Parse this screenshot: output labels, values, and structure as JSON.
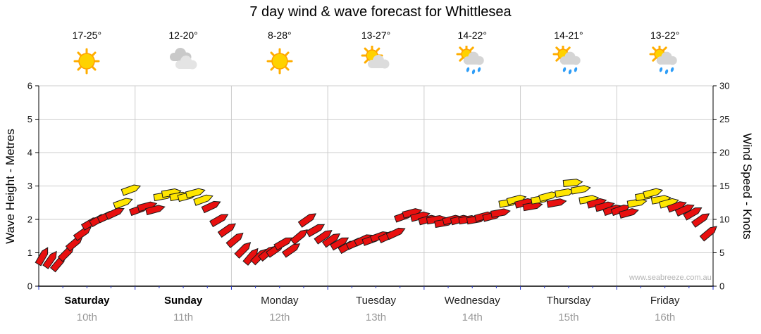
{
  "title": "7 day wind & wave forecast for Whittlesea",
  "watermark": "www.seabreeze.com.au",
  "y_left": {
    "label": "Wave Height - Metres",
    "ticks": [
      0,
      1,
      2,
      3,
      4,
      5,
      6
    ]
  },
  "y_right": {
    "label": "Wind Speed - Knots",
    "ticks": [
      0,
      5,
      10,
      15,
      20,
      25,
      30
    ]
  },
  "days": [
    {
      "name": "Saturday",
      "date": "10th",
      "temp": "17-25°",
      "icon": "sunny",
      "bold": true
    },
    {
      "name": "Sunday",
      "date": "11th",
      "temp": "12-20°",
      "icon": "cloudy",
      "bold": true
    },
    {
      "name": "Monday",
      "date": "12th",
      "temp": "8-28°",
      "icon": "sunny",
      "bold": false
    },
    {
      "name": "Tuesday",
      "date": "13th",
      "temp": "13-27°",
      "icon": "partly-cloudy",
      "bold": false
    },
    {
      "name": "Wednesday",
      "date": "14th",
      "temp": "14-22°",
      "icon": "showers",
      "bold": false
    },
    {
      "name": "Thursday",
      "date": "15th",
      "temp": "14-21°",
      "icon": "showers",
      "bold": false
    },
    {
      "name": "Friday",
      "date": "16th",
      "temp": "13-22°",
      "icon": "showers",
      "bold": false
    }
  ],
  "chart_data": {
    "type": "wind-arrows",
    "x_unit": "12 samples per day (approx. 2-hourly) across 7 days",
    "ylim_wave_m": [
      0,
      6
    ],
    "ylim_wind_knots": [
      0,
      30
    ],
    "grid": true,
    "colors": {
      "red": "#E8100F",
      "yellow": "#FFE600"
    },
    "wind_knots": [
      4.5,
      4,
      3.5,
      5,
      6.5,
      8,
      9.5,
      10,
      10.5,
      11,
      12.5,
      14.5,
      11.5,
      12,
      11.5,
      13.5,
      14,
      13.5,
      13.5,
      14,
      13,
      12,
      10,
      8.5,
      7,
      5.5,
      4.5,
      4.5,
      5,
      5.5,
      6.5,
      5.5,
      7.5,
      10,
      8.5,
      7.5,
      7,
      6.5,
      6,
      6.5,
      7,
      7,
      7.5,
      7.5,
      8,
      10.5,
      11,
      10.5,
      10,
      10,
      9.5,
      10,
      10,
      10,
      10,
      10.5,
      10.5,
      11,
      12.5,
      13,
      12.5,
      12,
      13,
      13.5,
      12.5,
      14,
      15.5,
      14.5,
      13,
      12.5,
      12,
      11.5,
      11.5,
      11,
      12.5,
      13.5,
      14,
      13,
      12.5,
      12,
      11.5,
      11,
      10,
      8
    ],
    "arrow_color": [
      "red",
      "red",
      "red",
      "red",
      "red",
      "red",
      "red",
      "red",
      "red",
      "red",
      "yellow",
      "yellow",
      "red",
      "red",
      "red",
      "yellow",
      "yellow",
      "yellow",
      "yellow",
      "yellow",
      "yellow",
      "red",
      "red",
      "red",
      "red",
      "red",
      "red",
      "red",
      "red",
      "red",
      "red",
      "red",
      "red",
      "red",
      "red",
      "red",
      "red",
      "red",
      "red",
      "red",
      "red",
      "red",
      "red",
      "red",
      "red",
      "red",
      "red",
      "red",
      "red",
      "red",
      "red",
      "red",
      "red",
      "red",
      "red",
      "red",
      "red",
      "red",
      "yellow",
      "yellow",
      "red",
      "red",
      "yellow",
      "yellow",
      "red",
      "yellow",
      "yellow",
      "yellow",
      "yellow",
      "red",
      "red",
      "red",
      "red",
      "red",
      "yellow",
      "yellow",
      "yellow",
      "yellow",
      "yellow",
      "red",
      "red",
      "red",
      "red",
      "red"
    ],
    "arrow_dir_deg": [
      -60,
      -55,
      -50,
      -45,
      -40,
      -35,
      -30,
      -30,
      -25,
      -25,
      -20,
      -20,
      -20,
      -15,
      -15,
      -10,
      -10,
      -10,
      -15,
      -15,
      -20,
      -25,
      -30,
      -35,
      -40,
      -45,
      -50,
      -45,
      -40,
      -35,
      -30,
      -35,
      -40,
      -35,
      -30,
      -35,
      -35,
      -30,
      -30,
      -25,
      -25,
      -20,
      -20,
      -25,
      -25,
      -20,
      -15,
      -15,
      -15,
      -10,
      -10,
      -15,
      -15,
      -10,
      -10,
      -15,
      -15,
      -10,
      -10,
      -15,
      -15,
      -10,
      -10,
      -15,
      -10,
      -10,
      -5,
      -10,
      -10,
      -15,
      -15,
      -20,
      -20,
      -15,
      -10,
      -10,
      -15,
      -10,
      -15,
      -20,
      -25,
      -30,
      -35,
      -40
    ]
  }
}
